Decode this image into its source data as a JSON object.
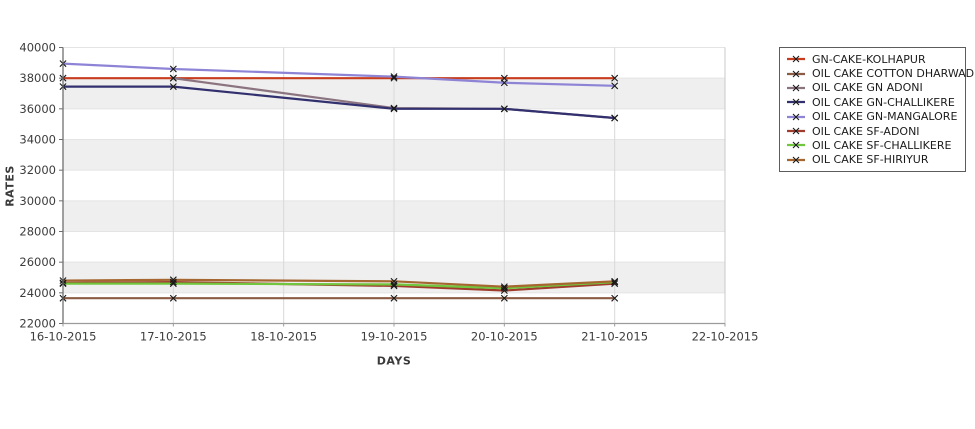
{
  "chart_data": {
    "type": "line",
    "title": "",
    "xlabel": "DAYS",
    "ylabel": "RATES",
    "x_ticks": [
      "16-10-2015",
      "17-10-2015",
      "18-10-2015",
      "19-10-2015",
      "20-10-2015",
      "21-10-2015",
      "22-10-2015"
    ],
    "y_ticks": [
      22000,
      24000,
      26000,
      28000,
      30000,
      32000,
      34000,
      36000,
      38000,
      40000
    ],
    "ylim": [
      22000,
      40000
    ],
    "grid": true,
    "alternating_bands": true,
    "band_color": "#efefef",
    "legend_position": "outside-top-right",
    "marker": "x",
    "x": [
      "16-10-2015",
      "17-10-2015",
      "19-10-2015",
      "20-10-2015",
      "21-10-2015"
    ],
    "series": [
      {
        "name": "GN-CAKE-KOLHAPUR",
        "color": "#c73d1d",
        "values": [
          38000,
          38000,
          38000,
          38000,
          38000
        ]
      },
      {
        "name": "OIL CAKE COTTON DHARWAD",
        "color": "#8c5b43",
        "values": [
          23650,
          23650,
          23650,
          23650,
          23650
        ]
      },
      {
        "name": "OIL CAKE GN ADONI",
        "color": "#8b7480",
        "values": [
          null,
          38000,
          36050,
          36000,
          35400
        ]
      },
      {
        "name": "OIL CAKE GN-CHALLIKERE",
        "color": "#32306e",
        "values": [
          37450,
          37450,
          36000,
          36000,
          35400
        ]
      },
      {
        "name": "OIL CAKE GN-MANGALORE",
        "color": "#8e84d6",
        "values": [
          38950,
          38600,
          38100,
          37700,
          37500
        ]
      },
      {
        "name": "OIL CAKE SF-ADONI",
        "color": "#a03c2d",
        "values": [
          24650,
          24700,
          24450,
          24150,
          24600
        ]
      },
      {
        "name": "OIL CAKE SF-CHALLIKERE",
        "color": "#72c63e",
        "values": [
          24600,
          24600,
          24550,
          24300,
          24700
        ]
      },
      {
        "name": "OIL CAKE SF-HIRIYUR",
        "color": "#a5662f",
        "values": [
          24800,
          24850,
          24750,
          24400,
          24750
        ]
      }
    ]
  }
}
